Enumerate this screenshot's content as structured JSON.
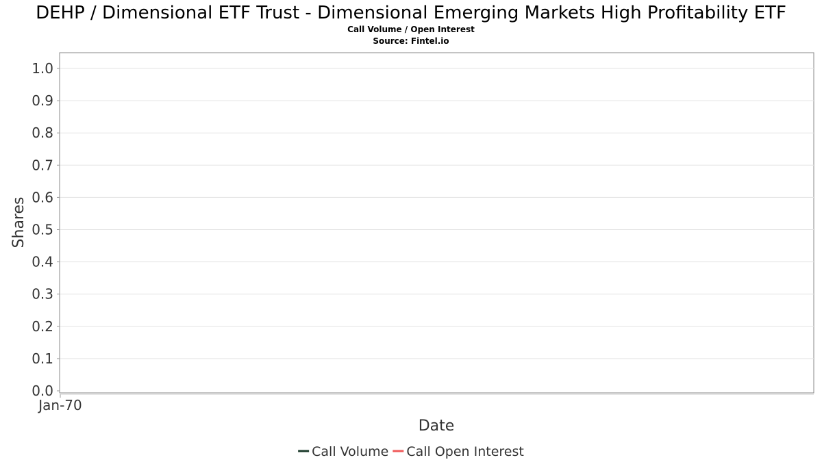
{
  "chart_data": {
    "type": "line",
    "title": "DEHP / Dimensional ETF Trust - Dimensional Emerging Markets High Profitability ETF",
    "subtitle": "Call Volume / Open Interest",
    "source": "Source: Fintel.io",
    "xlabel": "Date",
    "ylabel": "Shares",
    "ylim": [
      0,
      1
    ],
    "y_ticks": [
      "0.0",
      "0.1",
      "0.2",
      "0.3",
      "0.4",
      "0.5",
      "0.6",
      "0.7",
      "0.8",
      "0.9",
      "1.0"
    ],
    "x_ticks": [
      "Jan-70"
    ],
    "grid": true,
    "legend_position": "bottom-center",
    "series": [
      {
        "name": "Call Volume",
        "color": "#1b3a2a",
        "values": []
      },
      {
        "name": "Call Open Interest",
        "color": "#f05a5a",
        "values": []
      }
    ]
  }
}
